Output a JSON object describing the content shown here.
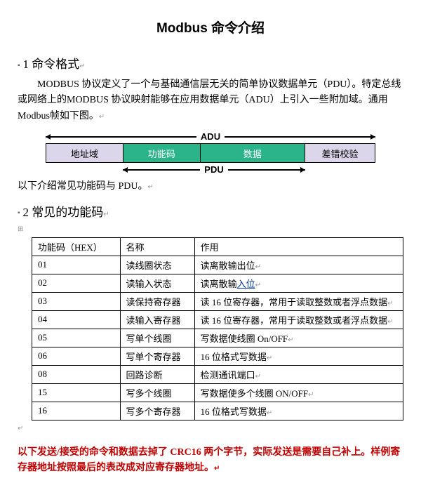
{
  "title": "Modbus 命令介绍",
  "section1": {
    "num": "1",
    "heading": "命令格式"
  },
  "para1": "MODBUS 协议定义了一个与基础通信层无关的简单协议数据单元（PDU）。特定总线或网络上的MODBUS 协议映射能够在应用数据单元（ADU）上引入一些附加域。通用Modbus帧如下图。",
  "adu": {
    "top_label": "ADU",
    "bottom_label": "PDU",
    "boxes": {
      "addr": "地址域",
      "func": "功能码",
      "data": "数据",
      "crc": "差错校验"
    },
    "colors": {
      "purple": "#dcd6ea",
      "green": "#2bb38a"
    }
  },
  "para2": "以下介绍常见功能码与 PDU。",
  "section2": {
    "num": "2",
    "heading": "常见的功能码"
  },
  "table": {
    "header": {
      "c1": "功能码（HEX）",
      "c2": "名称",
      "c3": "作用"
    },
    "rows": [
      {
        "c1": "01",
        "c2": "读线圈状态",
        "c3_a": "读离散输出位"
      },
      {
        "c1": "02",
        "c2": "读输入状态",
        "c3_a": "读离散输",
        "c3_link": "入位"
      },
      {
        "c1": "03",
        "c2": "读保持寄存器",
        "c3_a": "读 16 位寄存器，常用于读取整数或者浮点数据"
      },
      {
        "c1": "04",
        "c2": "读输入寄存器",
        "c3_a": "读 16 位寄存器，常用于读取整数或者浮点数据"
      },
      {
        "c1": "05",
        "c2": "写单个线圈",
        "c3_a": "写数据使线圈 On/OFF"
      },
      {
        "c1": "06",
        "c2": "写单个寄存器",
        "c3_a": "16 位格式写数据"
      },
      {
        "c1": "08",
        "c2": "回路诊断",
        "c3_a": "检测通讯端口"
      },
      {
        "c1": "15",
        "c2": "写多个线圈",
        "c3_a": "写数据使多个线圈 ON/OFF"
      },
      {
        "c1": "16",
        "c2": "写多个寄存器",
        "c3_a": "16 位格式写数据"
      }
    ]
  },
  "note": "以下发送/接受的命令和数据去掉了 CRC16 两个字节，实际发送是需要自己补上。样例寄存器地址按照最后的表改成对应寄存器地址。"
}
